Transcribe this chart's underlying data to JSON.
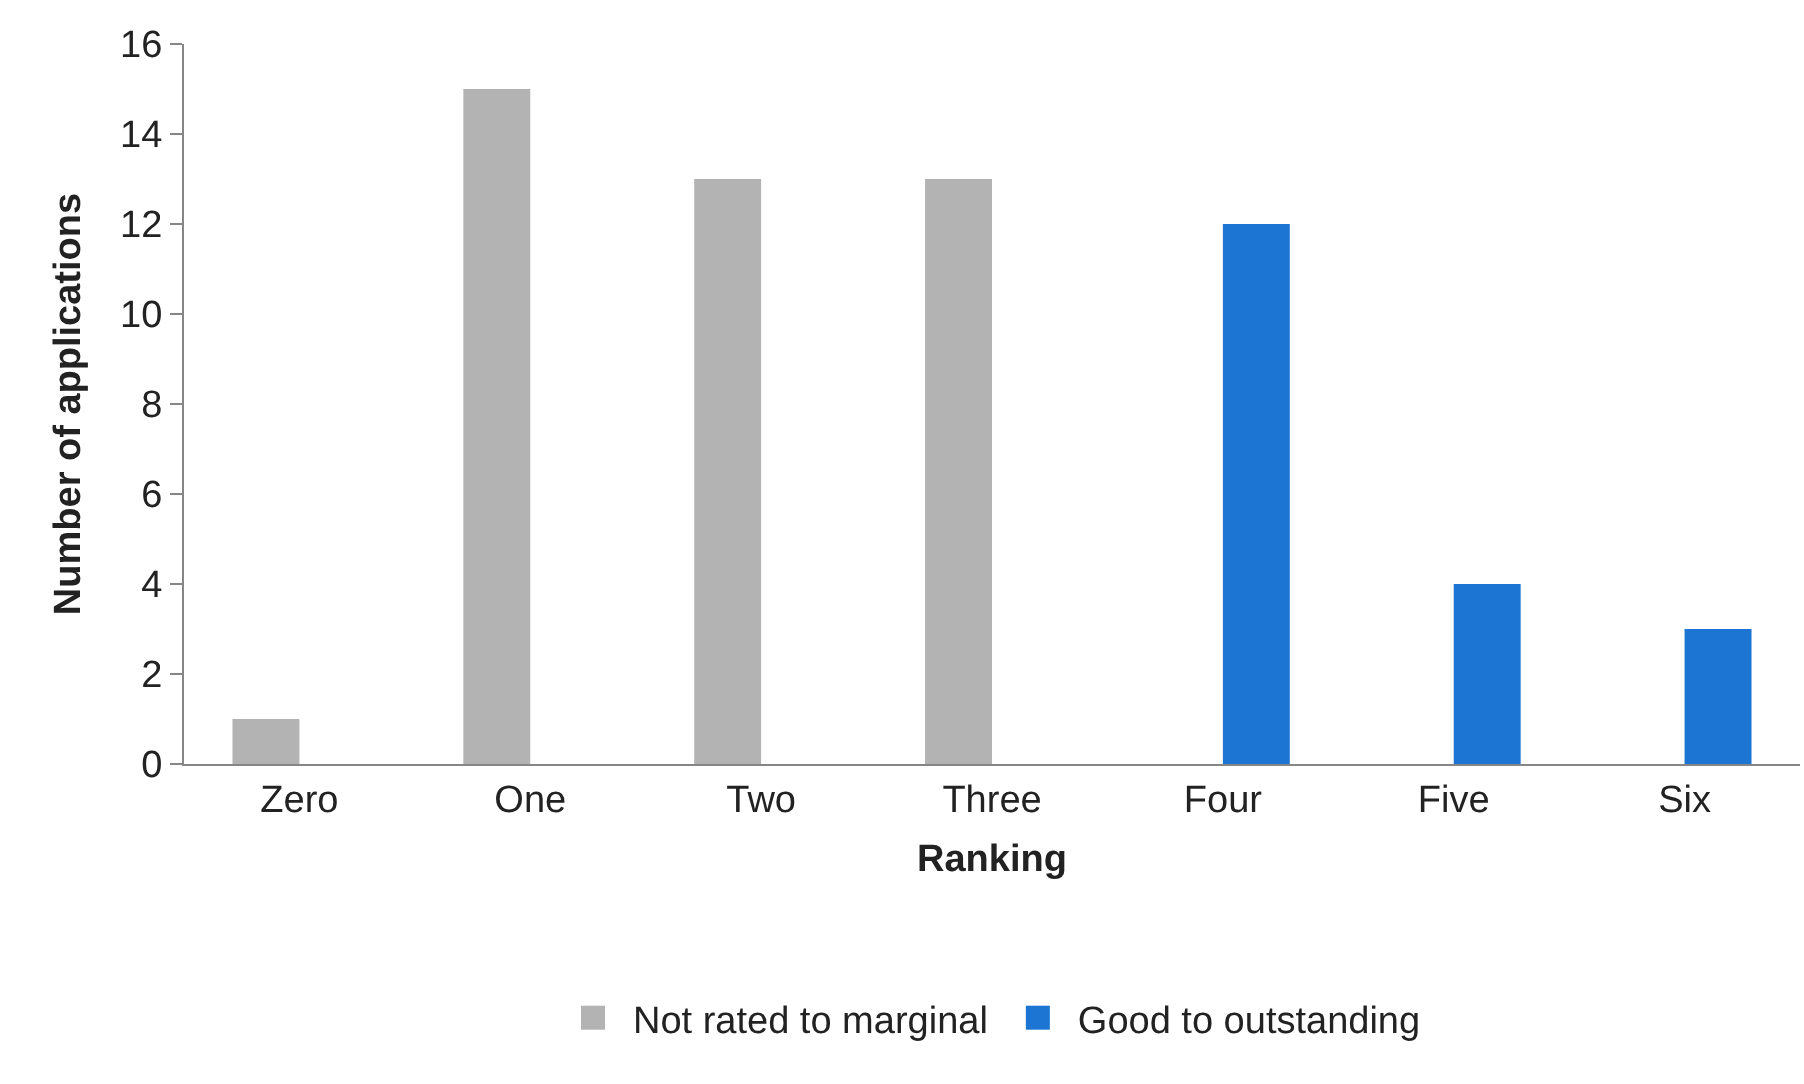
{
  "chart_data": {
    "type": "bar",
    "xlabel": "Ranking",
    "ylabel": "Number of applications",
    "categories": [
      "Zero",
      "One",
      "Two",
      "Three",
      "Four",
      "Five",
      "Six"
    ],
    "series": [
      {
        "name": "Not rated to marginal",
        "color": "#b3b3b3",
        "values": [
          1,
          15,
          13,
          13,
          null,
          null,
          null
        ]
      },
      {
        "name": "Good to outstanding",
        "color": "#1c75d2",
        "values": [
          null,
          null,
          null,
          null,
          12,
          4,
          3
        ]
      }
    ],
    "ylim": [
      0,
      16
    ],
    "yticks": [
      0,
      2,
      4,
      6,
      8,
      10,
      12,
      14,
      16
    ],
    "grid": false,
    "legend": "bottom"
  }
}
